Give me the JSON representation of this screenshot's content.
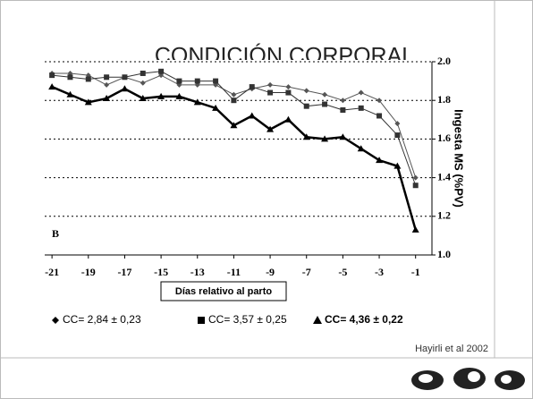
{
  "chart_data": {
    "type": "line",
    "title": "CONDICIÓN CORPORAL",
    "y_label": "Ingesta MS (%PV)",
    "x_label": "Días relativo al parto",
    "panel_label": "B",
    "source": "Hayirli et al 2002",
    "x": [
      -21,
      -20,
      -19,
      -18,
      -17,
      -16,
      -15,
      -14,
      -13,
      -12,
      -11,
      -10,
      -9,
      -8,
      -7,
      -6,
      -5,
      -4,
      -3,
      -2,
      -1
    ],
    "series": [
      {
        "name": "CC= 2,84 ± 0,23",
        "marker": "diamond",
        "color": "#555555",
        "values": [
          1.94,
          1.94,
          1.93,
          1.88,
          1.92,
          1.89,
          1.93,
          1.88,
          1.88,
          1.88,
          1.83,
          1.86,
          1.88,
          1.87,
          1.85,
          1.83,
          1.8,
          1.84,
          1.8,
          1.68,
          1.4
        ]
      },
      {
        "name": "CC= 3,57 ± 0,25",
        "marker": "square",
        "color": "#333333",
        "values": [
          1.93,
          1.92,
          1.91,
          1.92,
          1.92,
          1.94,
          1.95,
          1.9,
          1.9,
          1.9,
          1.8,
          1.87,
          1.84,
          1.84,
          1.77,
          1.78,
          1.75,
          1.76,
          1.72,
          1.62,
          1.36
        ]
      },
      {
        "name": "CC= 4,36 ± 0,22",
        "marker": "triangle",
        "color": "#000000",
        "values": [
          1.87,
          1.83,
          1.79,
          1.81,
          1.86,
          1.81,
          1.82,
          1.82,
          1.79,
          1.76,
          1.67,
          1.72,
          1.65,
          1.7,
          1.61,
          1.6,
          1.61,
          1.55,
          1.49,
          1.46,
          1.13
        ]
      }
    ],
    "xlim": [
      -21.4,
      -0.1
    ],
    "xticks": [
      -21,
      -19,
      -17,
      -15,
      -13,
      -11,
      -9,
      -7,
      -5,
      -3,
      -1
    ],
    "ylim": [
      1.0,
      2.0
    ],
    "yticks": [
      {
        "value": 1.0,
        "label": "1.0"
      },
      {
        "value": 1.2,
        "label": "1.2"
      },
      {
        "value": 1.4,
        "label": "1.4"
      },
      {
        "value": 1.6,
        "label": "1.6"
      },
      {
        "value": 1.8,
        "label": "1.8"
      },
      {
        "value": 2.0,
        "label": "2.0"
      }
    ],
    "grid": true
  }
}
